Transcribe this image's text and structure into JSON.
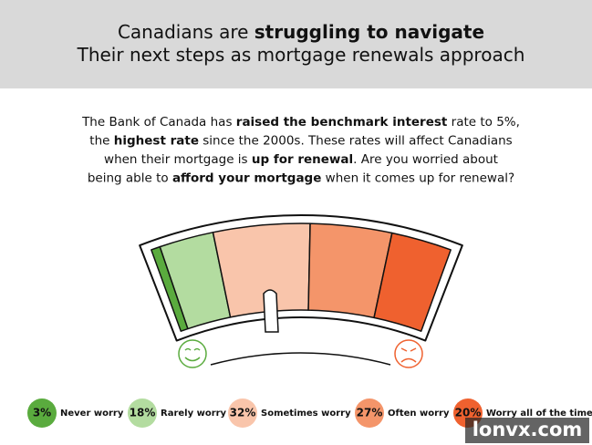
{
  "chart_data": {
    "type": "gauge",
    "title_lines": [
      [
        {
          "text": "Canadians are ",
          "bold": false
        },
        {
          "text": "struggling to navigate",
          "bold": true
        }
      ],
      [
        {
          "text": "Their next steps as mortgage renewals approach",
          "bold": false
        }
      ]
    ],
    "description_lines": [
      [
        {
          "text": "The Bank of Canada has ",
          "bold": false
        },
        {
          "text": "raised the benchmark interest",
          "bold": true
        },
        {
          "text": " rate to 5%,",
          "bold": false
        }
      ],
      [
        {
          "text": "the ",
          "bold": false
        },
        {
          "text": "highest rate",
          "bold": true
        },
        {
          "text": " since the 2000s. These rates will affect Canadians",
          "bold": false
        }
      ],
      [
        {
          "text": "when their mortgage is ",
          "bold": false
        },
        {
          "text": "up for renewal",
          "bold": true
        },
        {
          "text": ". Are you worried about",
          "bold": false
        }
      ],
      [
        {
          "text": "being able to ",
          "bold": false
        },
        {
          "text": "afford your mortgage",
          "bold": true
        },
        {
          "text": " when it comes up for renewal?",
          "bold": false
        }
      ]
    ],
    "categories": [
      "Never worry",
      "Rarely worry",
      "Sometimes worry",
      "Often worry",
      "Worry all of the time"
    ],
    "values": [
      3,
      18,
      32,
      27,
      20
    ],
    "value_labels": [
      "3%",
      "18%",
      "32%",
      "27%",
      "20%"
    ],
    "colors": [
      "#5aab3e",
      "#b3dca0",
      "#f9c5ab",
      "#f4956a",
      "#ef612f"
    ],
    "watermark": "lonvx.com"
  }
}
